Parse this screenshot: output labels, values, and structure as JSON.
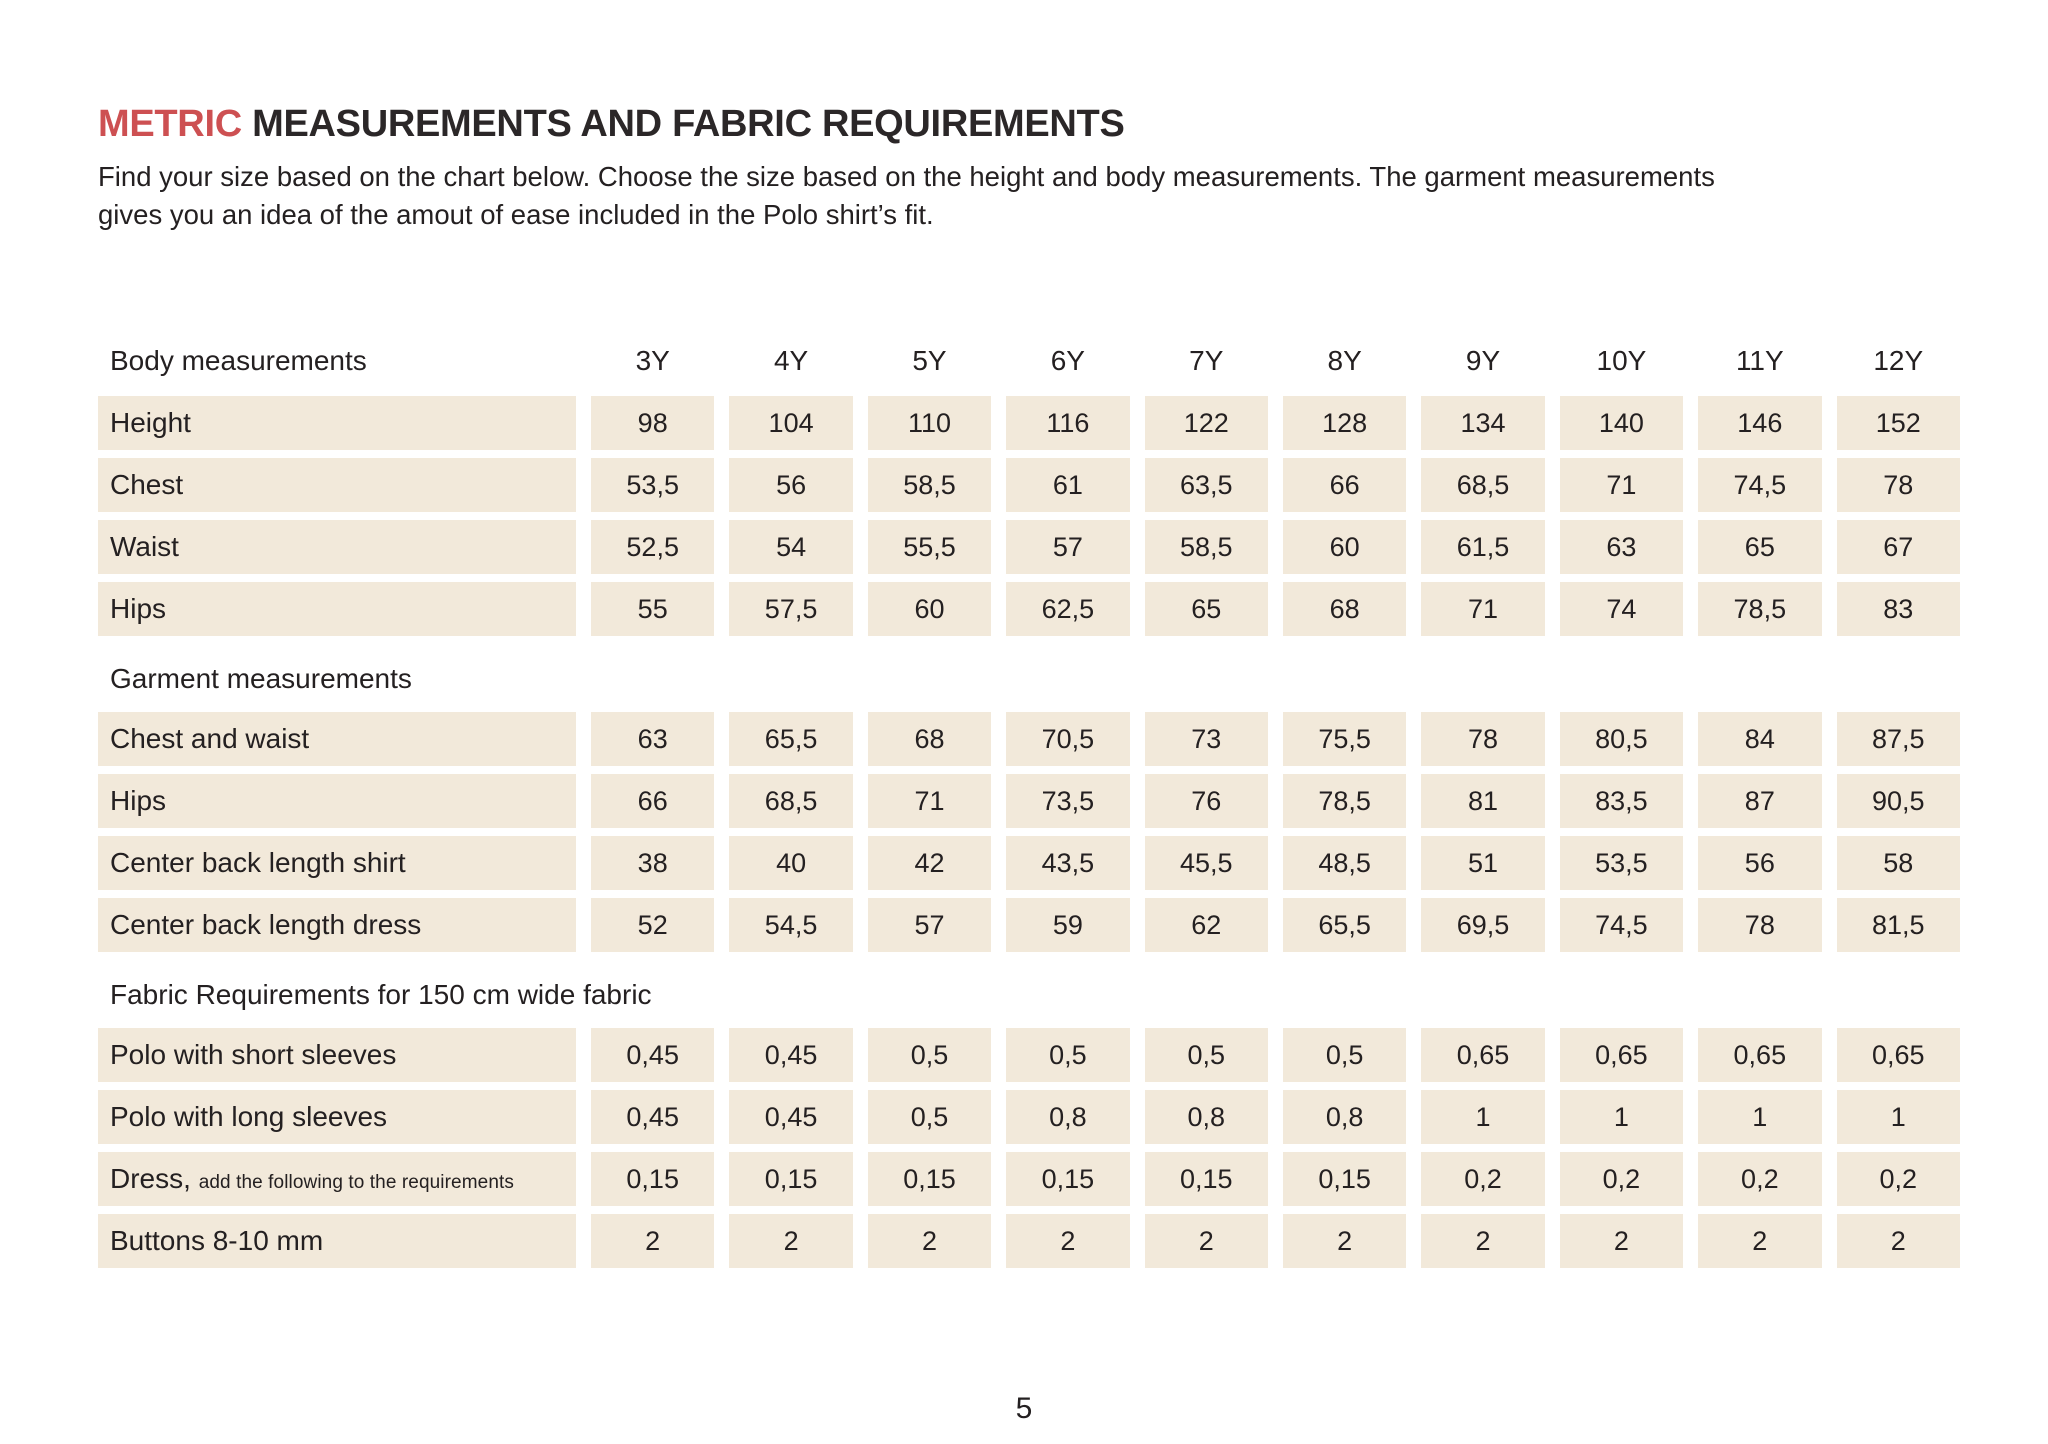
{
  "colors": {
    "accent": "#cd5052",
    "cell_bg": "#f2e9da",
    "text": "#242021"
  },
  "header": {
    "title_accent": "METRIC",
    "title_rest": " MEASUREMENTS AND FABRIC REQUIREMENTS",
    "intro_line1": "Find your size based on the chart below. Choose the size based on the height and body measurements. The garment measurements",
    "intro_line2": "gives you an idea of the amout of ease included in the Polo shirt’s fit."
  },
  "table": {
    "rows": [
      {
        "type": "header",
        "label": "Body measurements",
        "values": [
          "3Y",
          "4Y",
          "5Y",
          "6Y",
          "7Y",
          "8Y",
          "9Y",
          "10Y",
          "11Y",
          "12Y"
        ]
      },
      {
        "type": "data",
        "label": "Height",
        "values": [
          "98",
          "104",
          "110",
          "116",
          "122",
          "128",
          "134",
          "140",
          "146",
          "152"
        ]
      },
      {
        "type": "data",
        "label": "Chest",
        "values": [
          "53,5",
          "56",
          "58,5",
          "61",
          "63,5",
          "66",
          "68,5",
          "71",
          "74,5",
          "78"
        ]
      },
      {
        "type": "data",
        "label": "Waist",
        "values": [
          "52,5",
          "54",
          "55,5",
          "57",
          "58,5",
          "60",
          "61,5",
          "63",
          "65",
          "67"
        ]
      },
      {
        "type": "data",
        "label": "Hips",
        "values": [
          "55",
          "57,5",
          "60",
          "62,5",
          "65",
          "68",
          "71",
          "74",
          "78,5",
          "83"
        ]
      },
      {
        "type": "section",
        "label": "Garment measurements"
      },
      {
        "type": "data",
        "label": "Chest and waist",
        "values": [
          "63",
          "65,5",
          "68",
          "70,5",
          "73",
          "75,5",
          "78",
          "80,5",
          "84",
          "87,5"
        ]
      },
      {
        "type": "data",
        "label": "Hips",
        "values": [
          "66",
          "68,5",
          "71",
          "73,5",
          "76",
          "78,5",
          "81",
          "83,5",
          "87",
          "90,5"
        ]
      },
      {
        "type": "data",
        "label": "Center back length shirt",
        "values": [
          "38",
          "40",
          "42",
          "43,5",
          "45,5",
          "48,5",
          "51",
          "53,5",
          "56",
          "58"
        ]
      },
      {
        "type": "data",
        "label": "Center back length dress",
        "values": [
          "52",
          "54,5",
          "57",
          "59",
          "62",
          "65,5",
          "69,5",
          "74,5",
          "78",
          "81,5"
        ]
      },
      {
        "type": "section",
        "label": "Fabric Requirements for 150 cm wide fabric"
      },
      {
        "type": "data",
        "label": "Polo with short sleeves",
        "values": [
          "0,45",
          "0,45",
          "0,5",
          "0,5",
          "0,5",
          "0,5",
          "0,65",
          "0,65",
          "0,65",
          "0,65"
        ]
      },
      {
        "type": "data",
        "label": "Polo with long sleeves",
        "values": [
          "0,45",
          "0,45",
          "0,5",
          "0,8",
          "0,8",
          "0,8",
          "1",
          "1",
          "1",
          "1"
        ]
      },
      {
        "type": "data",
        "label": "Dress,",
        "note": "add the following to the requirements",
        "values": [
          "0,15",
          "0,15",
          "0,15",
          "0,15",
          "0,15",
          "0,15",
          "0,2",
          "0,2",
          "0,2",
          "0,2"
        ]
      },
      {
        "type": "data",
        "label": "Buttons 8-10 mm",
        "values": [
          "2",
          "2",
          "2",
          "2",
          "2",
          "2",
          "2",
          "2",
          "2",
          "2"
        ]
      }
    ]
  },
  "footer": {
    "page_number": "5"
  }
}
